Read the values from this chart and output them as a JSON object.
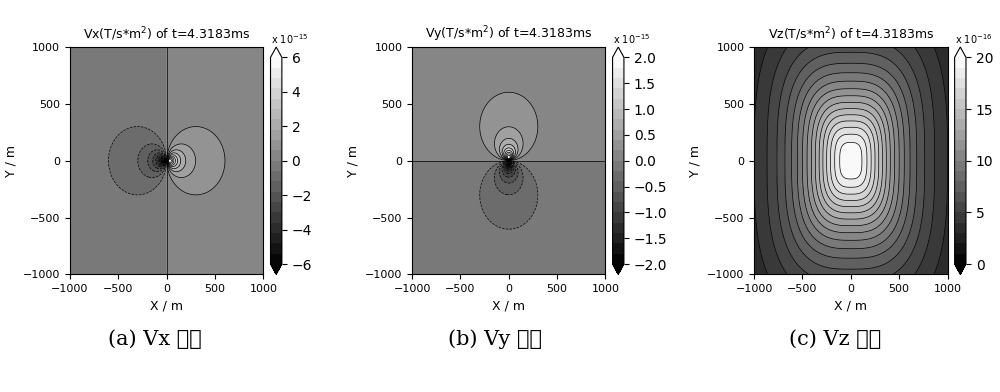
{
  "title_vx": "Vx(T/s*m$^2$) of t=4.3183ms",
  "title_vy": "Vy(T/s*m$^2$) of t=4.3183ms",
  "title_vz": "Vz(T/s*m$^2$) of t=4.3183ms",
  "xlabel": "X / m",
  "ylabel": "Y / m",
  "xlim": [
    -1000,
    1000
  ],
  "ylim": [
    -1000,
    1000
  ],
  "xticks": [
    -1000,
    -500,
    0,
    500,
    1000
  ],
  "yticks": [
    -1000,
    -500,
    0,
    500,
    1000
  ],
  "vx_clim": [
    -6,
    6
  ],
  "vy_clim": [
    -2,
    2
  ],
  "vz_clim": [
    0,
    20
  ],
  "caption_a": "(a) Vx 分量",
  "caption_b": "(b) Vy 分量",
  "caption_c": "(c) Vz 分量",
  "n_grid": 300,
  "n_contour_levels": 20,
  "background_color": "#ffffff",
  "colorbar_ticks_vx": [
    -6,
    -4,
    -2,
    0,
    2,
    4,
    6
  ],
  "colorbar_ticks_vy": [
    -2,
    -1.5,
    -1,
    -0.5,
    0,
    0.5,
    1,
    1.5,
    2
  ],
  "colorbar_ticks_vz": [
    0,
    5,
    10,
    15,
    20
  ],
  "cb_title_vx": "x 10$^{-15}$",
  "cb_title_vy": "x 10$^{-15}$",
  "cb_title_vz": "x 10$^{-16}$"
}
